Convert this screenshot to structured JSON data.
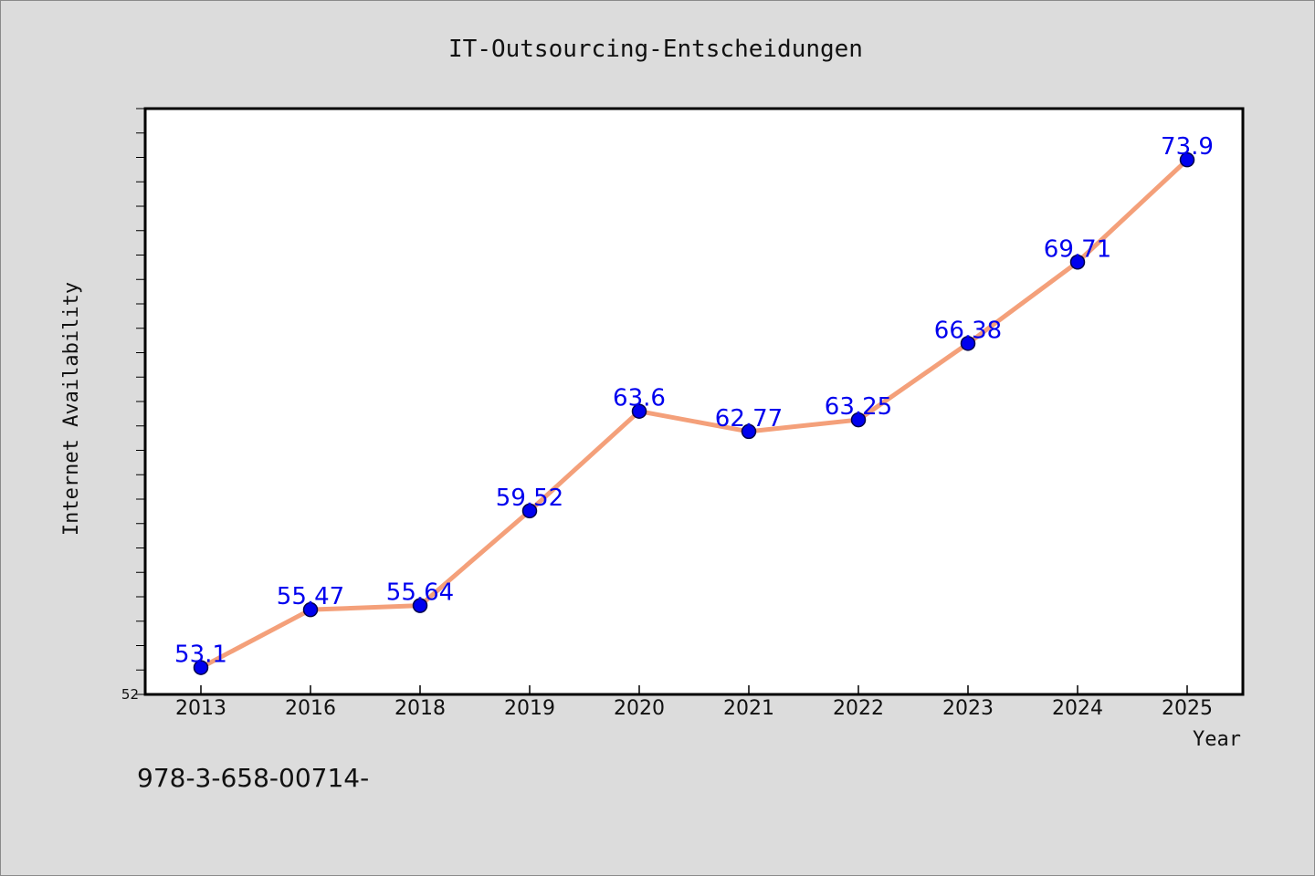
{
  "chart_data": {
    "type": "line",
    "title": "IT-Outsourcing-Entscheidungen",
    "xlabel": "Year",
    "ylabel": "Internet Availability",
    "categories": [
      "2013",
      "2016",
      "2018",
      "2019",
      "2020",
      "2021",
      "2022",
      "2023",
      "2024",
      "2025"
    ],
    "series": [
      {
        "values": [
          53.1,
          55.47,
          55.64,
          59.52,
          63.6,
          62.77,
          63.25,
          66.38,
          69.71,
          73.9
        ]
      }
    ],
    "data_labels": [
      "53.1",
      "55.47",
      "55.64",
      "59.52",
      "63.6",
      "62.77",
      "63.25",
      "66.38",
      "69.71",
      "73.9"
    ],
    "y_tick_label": "52",
    "ylim": [
      52,
      76
    ],
    "line_color": "#f4a07a",
    "marker_color": "#0000ee",
    "label_color": "#0000ee",
    "grid": false,
    "legend": "none"
  },
  "footer": {
    "code": "978-3-658-00714-"
  }
}
